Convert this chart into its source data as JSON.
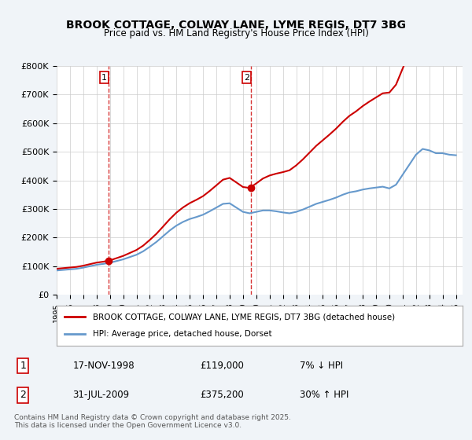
{
  "title": "BROOK COTTAGE, COLWAY LANE, LYME REGIS, DT7 3BG",
  "subtitle": "Price paid vs. HM Land Registry's House Price Index (HPI)",
  "background_color": "#f0f4f8",
  "plot_bg_color": "#ffffff",
  "legend_line1": "BROOK COTTAGE, COLWAY LANE, LYME REGIS, DT7 3BG (detached house)",
  "legend_line2": "HPI: Average price, detached house, Dorset",
  "sale1_date": "17-NOV-1998",
  "sale1_price": 119000,
  "sale1_hpi": "7% ↓ HPI",
  "sale2_date": "31-JUL-2009",
  "sale2_price": 375200,
  "sale2_hpi": "30% ↑ HPI",
  "footer": "Contains HM Land Registry data © Crown copyright and database right 2025.\nThis data is licensed under the Open Government Licence v3.0.",
  "red_color": "#cc0000",
  "blue_color": "#6699cc",
  "sale1_marker_color": "#cc0000",
  "sale2_marker_color": "#cc0000",
  "vline_color": "#cc0000",
  "ylim": [
    0,
    800000
  ],
  "yticks": [
    0,
    100000,
    200000,
    300000,
    400000,
    500000,
    600000,
    700000,
    800000
  ],
  "xlim_start": 1995.0,
  "xlim_end": 2025.5,
  "sale1_year": 1998.88,
  "sale2_year": 2009.58
}
